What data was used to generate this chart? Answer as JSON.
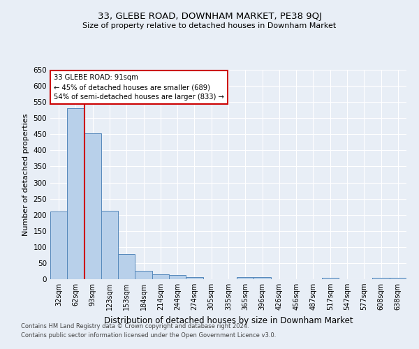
{
  "title": "33, GLEBE ROAD, DOWNHAM MARKET, PE38 9QJ",
  "subtitle": "Size of property relative to detached houses in Downham Market",
  "xlabel": "Distribution of detached houses by size in Downham Market",
  "ylabel": "Number of detached properties",
  "footnote1": "Contains HM Land Registry data © Crown copyright and database right 2024.",
  "footnote2": "Contains public sector information licensed under the Open Government Licence v3.0.",
  "categories": [
    "32sqm",
    "62sqm",
    "93sqm",
    "123sqm",
    "153sqm",
    "184sqm",
    "214sqm",
    "244sqm",
    "274sqm",
    "305sqm",
    "335sqm",
    "365sqm",
    "396sqm",
    "426sqm",
    "456sqm",
    "487sqm",
    "517sqm",
    "547sqm",
    "577sqm",
    "608sqm",
    "638sqm"
  ],
  "values": [
    210,
    530,
    452,
    213,
    78,
    25,
    15,
    13,
    6,
    0,
    0,
    7,
    7,
    0,
    0,
    0,
    5,
    0,
    0,
    5,
    5
  ],
  "bar_color": "#b8d0ea",
  "bar_edge_color": "#5588bb",
  "red_line_index": 2,
  "red_line_color": "#cc0000",
  "annotation_line1": "33 GLEBE ROAD: 91sqm",
  "annotation_line2": "← 45% of detached houses are smaller (689)",
  "annotation_line3": "54% of semi-detached houses are larger (833) →",
  "annotation_box_color": "#ffffff",
  "annotation_box_edge": "#cc0000",
  "background_color": "#e8eef6",
  "ylim": [
    0,
    650
  ],
  "yticks": [
    0,
    50,
    100,
    150,
    200,
    250,
    300,
    350,
    400,
    450,
    500,
    550,
    600,
    650
  ]
}
